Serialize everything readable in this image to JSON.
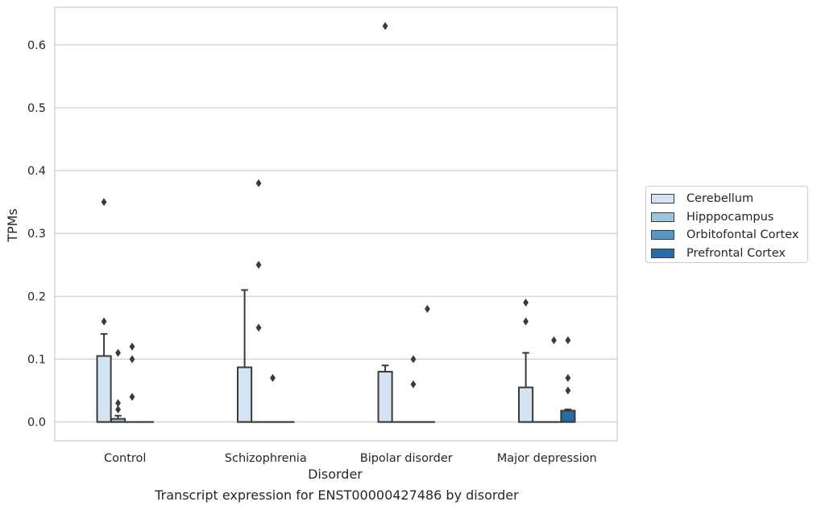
{
  "chart_data": {
    "type": "box",
    "title": "Transcript expression for ENST00000427486 by disorder",
    "xlabel": "Disorder",
    "ylabel": "TPMs",
    "categories": [
      "Control",
      "Schizophrenia",
      "Bipolar disorder",
      "Major depression"
    ],
    "ylim": [
      -0.03,
      0.66
    ],
    "yticks": [
      "0.0",
      "0.1",
      "0.2",
      "0.3",
      "0.4",
      "0.5",
      "0.6"
    ],
    "grid": true,
    "legend_position": "right",
    "series": [
      {
        "name": "Cerebellum",
        "color": "#d4e3f2",
        "boxes": [
          {
            "q1": 0.0,
            "median": 0.0,
            "q3": 0.105,
            "whisker_low": 0.0,
            "whisker_high": 0.14,
            "outliers": [
              0.35,
              0.16
            ]
          },
          {
            "q1": 0.0,
            "median": 0.0,
            "q3": 0.087,
            "whisker_low": 0.0,
            "whisker_high": 0.21,
            "outliers": []
          },
          {
            "q1": 0.0,
            "median": 0.0,
            "q3": 0.08,
            "whisker_low": 0.0,
            "whisker_high": 0.09,
            "outliers": [
              0.63
            ]
          },
          {
            "q1": 0.0,
            "median": 0.0,
            "q3": 0.055,
            "whisker_low": 0.0,
            "whisker_high": 0.11,
            "outliers": [
              0.19,
              0.16
            ]
          }
        ]
      },
      {
        "name": "Hipppocampus",
        "color": "#9ec4de",
        "boxes": [
          {
            "q1": 0.0,
            "median": 0.0,
            "q3": 0.005,
            "whisker_low": 0.0,
            "whisker_high": 0.01,
            "outliers": [
              0.11,
              0.03,
              0.02
            ]
          },
          {
            "q1": 0.0,
            "median": 0.0,
            "q3": 0.0,
            "whisker_low": 0.0,
            "whisker_high": 0.0,
            "outliers": [
              0.38,
              0.25,
              0.15
            ]
          },
          {
            "q1": 0.0,
            "median": 0.0,
            "q3": 0.0,
            "whisker_low": 0.0,
            "whisker_high": 0.0,
            "outliers": []
          },
          {
            "q1": 0.0,
            "median": 0.0,
            "q3": 0.0,
            "whisker_low": 0.0,
            "whisker_high": 0.0,
            "outliers": []
          }
        ]
      },
      {
        "name": "Orbitofontal Cortex",
        "color": "#5798c6",
        "boxes": [
          {
            "q1": 0.0,
            "median": 0.0,
            "q3": 0.0,
            "whisker_low": 0.0,
            "whisker_high": 0.0,
            "outliers": [
              0.12,
              0.1,
              0.04
            ]
          },
          {
            "q1": 0.0,
            "median": 0.0,
            "q3": 0.0,
            "whisker_low": 0.0,
            "whisker_high": 0.0,
            "outliers": [
              0.07
            ]
          },
          {
            "q1": 0.0,
            "median": 0.0,
            "q3": 0.0,
            "whisker_low": 0.0,
            "whisker_high": 0.0,
            "outliers": [
              0.1,
              0.06
            ]
          },
          {
            "q1": 0.0,
            "median": 0.0,
            "q3": 0.0,
            "whisker_low": 0.0,
            "whisker_high": 0.0,
            "outliers": [
              0.13
            ]
          }
        ]
      },
      {
        "name": "Prefrontal Cortex",
        "color": "#2b6aa8",
        "boxes": [
          {
            "q1": 0.0,
            "median": 0.0,
            "q3": 0.0,
            "whisker_low": 0.0,
            "whisker_high": 0.0,
            "outliers": []
          },
          {
            "q1": 0.0,
            "median": 0.0,
            "q3": 0.0,
            "whisker_low": 0.0,
            "whisker_high": 0.0,
            "outliers": []
          },
          {
            "q1": 0.0,
            "median": 0.0,
            "q3": 0.0,
            "whisker_low": 0.0,
            "whisker_high": 0.0,
            "outliers": [
              0.18
            ]
          },
          {
            "q1": 0.0,
            "median": 0.0,
            "q3": 0.018,
            "whisker_low": 0.0,
            "whisker_high": 0.02,
            "outliers": [
              0.13,
              0.07,
              0.05
            ]
          }
        ]
      }
    ]
  }
}
